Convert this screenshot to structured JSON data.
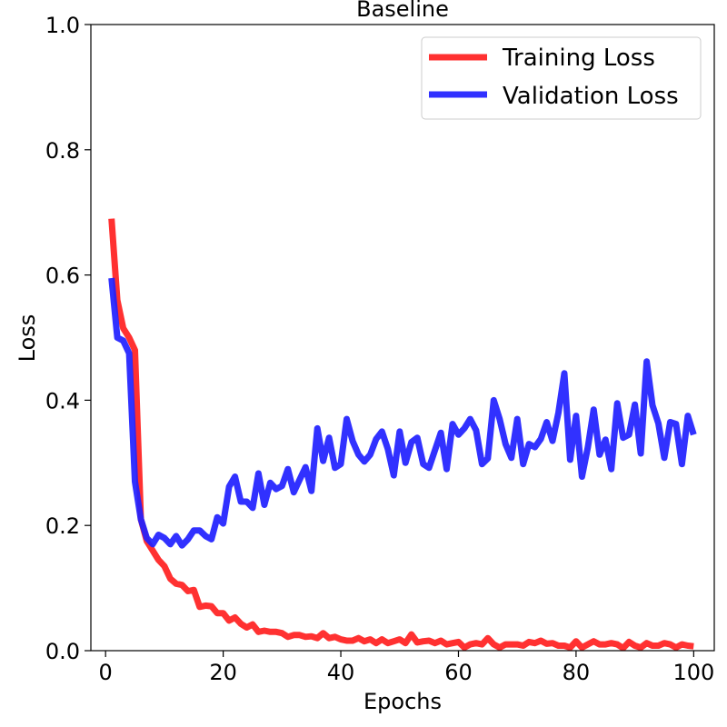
{
  "chart_data": {
    "type": "line",
    "title": "Baseline",
    "xlabel": "Epochs",
    "ylabel": "Loss",
    "xlim": [
      -2.5,
      103.5
    ],
    "ylim": [
      0.0,
      1.0
    ],
    "xticks": [
      0,
      20,
      40,
      60,
      80,
      100
    ],
    "xtick_labels": [
      "0",
      "20",
      "40",
      "60",
      "80",
      "100"
    ],
    "yticks": [
      0.0,
      0.2,
      0.4,
      0.6,
      0.8,
      1.0
    ],
    "ytick_labels": [
      "0.0",
      "0.2",
      "0.4",
      "0.6",
      "0.8",
      "1.0"
    ],
    "grid": false,
    "legend_position": "top-right",
    "x": [
      1,
      2,
      3,
      4,
      5,
      6,
      7,
      8,
      9,
      10,
      11,
      12,
      13,
      14,
      15,
      16,
      17,
      18,
      19,
      20,
      21,
      22,
      23,
      24,
      25,
      26,
      27,
      28,
      29,
      30,
      31,
      32,
      33,
      34,
      35,
      36,
      37,
      38,
      39,
      40,
      41,
      42,
      43,
      44,
      45,
      46,
      47,
      48,
      49,
      50,
      51,
      52,
      53,
      54,
      55,
      56,
      57,
      58,
      59,
      60,
      61,
      62,
      63,
      64,
      65,
      66,
      67,
      68,
      69,
      70,
      71,
      72,
      73,
      74,
      75,
      76,
      77,
      78,
      79,
      80,
      81,
      82,
      83,
      84,
      85,
      86,
      87,
      88,
      89,
      90,
      91,
      92,
      93,
      94,
      95,
      96,
      97,
      98,
      99,
      100
    ],
    "series": [
      {
        "name": "Training Loss",
        "color": "#ff2020",
        "values": [
          0.69,
          0.56,
          0.515,
          0.5,
          0.48,
          0.21,
          0.175,
          0.16,
          0.145,
          0.135,
          0.115,
          0.107,
          0.105,
          0.095,
          0.097,
          0.07,
          0.072,
          0.071,
          0.06,
          0.06,
          0.048,
          0.053,
          0.043,
          0.037,
          0.042,
          0.03,
          0.032,
          0.03,
          0.03,
          0.028,
          0.022,
          0.025,
          0.025,
          0.022,
          0.023,
          0.02,
          0.028,
          0.02,
          0.022,
          0.018,
          0.016,
          0.016,
          0.02,
          0.015,
          0.018,
          0.012,
          0.018,
          0.012,
          0.015,
          0.018,
          0.012,
          0.026,
          0.013,
          0.015,
          0.016,
          0.012,
          0.016,
          0.01,
          0.012,
          0.014,
          0.005,
          0.01,
          0.012,
          0.01,
          0.02,
          0.01,
          0.005,
          0.01,
          0.01,
          0.01,
          0.008,
          0.014,
          0.012,
          0.016,
          0.011,
          0.012,
          0.008,
          0.008,
          0.005,
          0.015,
          0.005,
          0.01,
          0.015,
          0.01,
          0.01,
          0.012,
          0.01,
          0.004,
          0.014,
          0.008,
          0.005,
          0.012,
          0.008,
          0.008,
          0.012,
          0.01,
          0.005,
          0.01,
          0.008,
          0.007
        ]
      },
      {
        "name": "Validation Loss",
        "color": "#2020ff",
        "values": [
          0.595,
          0.5,
          0.495,
          0.475,
          0.27,
          0.21,
          0.18,
          0.17,
          0.185,
          0.18,
          0.17,
          0.183,
          0.168,
          0.178,
          0.192,
          0.192,
          0.183,
          0.178,
          0.213,
          0.203,
          0.262,
          0.278,
          0.238,
          0.238,
          0.228,
          0.283,
          0.233,
          0.268,
          0.258,
          0.263,
          0.29,
          0.253,
          0.273,
          0.293,
          0.255,
          0.355,
          0.303,
          0.34,
          0.292,
          0.298,
          0.37,
          0.335,
          0.313,
          0.302,
          0.313,
          0.338,
          0.35,
          0.322,
          0.28,
          0.35,
          0.3,
          0.333,
          0.34,
          0.298,
          0.292,
          0.32,
          0.348,
          0.29,
          0.362,
          0.345,
          0.355,
          0.37,
          0.352,
          0.298,
          0.307,
          0.4,
          0.37,
          0.33,
          0.308,
          0.37,
          0.298,
          0.33,
          0.325,
          0.338,
          0.365,
          0.335,
          0.38,
          0.443,
          0.305,
          0.375,
          0.278,
          0.325,
          0.385,
          0.313,
          0.337,
          0.29,
          0.395,
          0.34,
          0.345,
          0.393,
          0.315,
          0.462,
          0.392,
          0.363,
          0.308,
          0.365,
          0.362,
          0.298,
          0.375,
          0.345
        ]
      }
    ]
  }
}
